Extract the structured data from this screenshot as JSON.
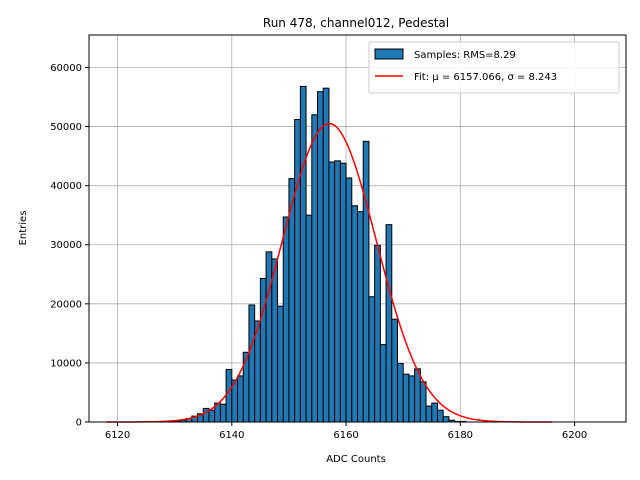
{
  "chart_data": {
    "type": "bar",
    "title": "Run 478, channel012, Pedestal",
    "xlabel": "ADC Counts",
    "ylabel": "Entries",
    "xlim": [
      6115,
      6209
    ],
    "ylim": [
      0,
      65500
    ],
    "xticks": [
      6120,
      6140,
      6160,
      6180,
      6200
    ],
    "yticks": [
      0,
      10000,
      20000,
      30000,
      40000,
      50000,
      60000
    ],
    "grid": true,
    "legend": {
      "location": "top-right",
      "hist_label": "Samples: RMS=8.29",
      "fit_label": "Fit: μ = 6157.066, σ = 8.243"
    },
    "colors": {
      "bar": "#1f77b4",
      "bar_edge": "#000000",
      "fit": "#ff0000",
      "grid": "#b0b0b0"
    },
    "histogram": {
      "bin_width": 1,
      "bins": [
        {
          "x": 6130,
          "y": 200
        },
        {
          "x": 6131,
          "y": 300
        },
        {
          "x": 6132,
          "y": 600
        },
        {
          "x": 6133,
          "y": 1000
        },
        {
          "x": 6134,
          "y": 1400
        },
        {
          "x": 6135,
          "y": 2300
        },
        {
          "x": 6136,
          "y": 2000
        },
        {
          "x": 6137,
          "y": 3200
        },
        {
          "x": 6138,
          "y": 3000
        },
        {
          "x": 6139,
          "y": 8900
        },
        {
          "x": 6140,
          "y": 7100
        },
        {
          "x": 6141,
          "y": 7800
        },
        {
          "x": 6142,
          "y": 11800
        },
        {
          "x": 6143,
          "y": 19800
        },
        {
          "x": 6144,
          "y": 17100
        },
        {
          "x": 6145,
          "y": 24300
        },
        {
          "x": 6146,
          "y": 28800
        },
        {
          "x": 6147,
          "y": 27600
        },
        {
          "x": 6148,
          "y": 19600
        },
        {
          "x": 6149,
          "y": 34700
        },
        {
          "x": 6150,
          "y": 41200
        },
        {
          "x": 6151,
          "y": 51200
        },
        {
          "x": 6152,
          "y": 56800
        },
        {
          "x": 6153,
          "y": 35000
        },
        {
          "x": 6154,
          "y": 52000
        },
        {
          "x": 6155,
          "y": 55900
        },
        {
          "x": 6156,
          "y": 56500
        },
        {
          "x": 6157,
          "y": 44000
        },
        {
          "x": 6158,
          "y": 44200
        },
        {
          "x": 6159,
          "y": 43800
        },
        {
          "x": 6160,
          "y": 41300
        },
        {
          "x": 6161,
          "y": 36600
        },
        {
          "x": 6162,
          "y": 35600
        },
        {
          "x": 6163,
          "y": 47500
        },
        {
          "x": 6164,
          "y": 21200
        },
        {
          "x": 6165,
          "y": 29900
        },
        {
          "x": 6166,
          "y": 13100
        },
        {
          "x": 6167,
          "y": 33400
        },
        {
          "x": 6168,
          "y": 17400
        },
        {
          "x": 6169,
          "y": 9900
        },
        {
          "x": 6170,
          "y": 8100
        },
        {
          "x": 6171,
          "y": 7800
        },
        {
          "x": 6172,
          "y": 9000
        },
        {
          "x": 6173,
          "y": 6800
        },
        {
          "x": 6174,
          "y": 2700
        },
        {
          "x": 6175,
          "y": 3200
        },
        {
          "x": 6176,
          "y": 2000
        },
        {
          "x": 6177,
          "y": 900
        },
        {
          "x": 6178,
          "y": 300
        },
        {
          "x": 6179,
          "y": 100
        },
        {
          "x": 6180,
          "y": 100
        }
      ]
    },
    "fit": {
      "function": "gaussian",
      "mu": 6157.066,
      "sigma": 8.243,
      "amplitude": 50500,
      "x_range": [
        6118,
        6196
      ]
    }
  }
}
